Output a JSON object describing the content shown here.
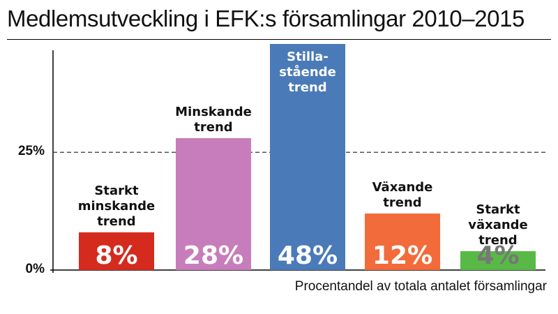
{
  "title": "Medlemsutveckling i EFK:s församlingar 2010–2015",
  "caption": "Procentandel av totala antalet församlingar",
  "chart_data": {
    "type": "bar",
    "title": "Medlemsutveckling i EFK:s församlingar 2010–2015",
    "xlabel": "Procentandel av totala antalet församlingar",
    "ylabel": "",
    "ylim": [
      0,
      50
    ],
    "yticks": [
      {
        "value": 0,
        "label": "0%"
      },
      {
        "value": 25,
        "label": "25%"
      }
    ],
    "reference_line": {
      "value": 25,
      "style": "dashed"
    },
    "grid": false,
    "categories": [
      [
        "Starkt",
        "minskande",
        "trend"
      ],
      [
        "Minskande",
        "trend"
      ],
      [
        "Stilla-",
        "stående",
        "trend"
      ],
      [
        "Växande",
        "trend"
      ],
      [
        "Starkt",
        "växande",
        "trend"
      ]
    ],
    "values": [
      8,
      28,
      48,
      12,
      4
    ],
    "value_labels": [
      "8%",
      "28%",
      "48%",
      "12%",
      "4%"
    ],
    "colors": [
      "#d42b1e",
      "#c77dbb",
      "#4a7ab8",
      "#f26b3a",
      "#58b947"
    ],
    "value_label_colors": [
      "#ffffff",
      "#ffffff",
      "#ffffff",
      "#ffffff",
      "#777777"
    ],
    "category_label_colors": [
      "#111111",
      "#111111",
      "#ffffff",
      "#111111",
      "#111111"
    ]
  }
}
